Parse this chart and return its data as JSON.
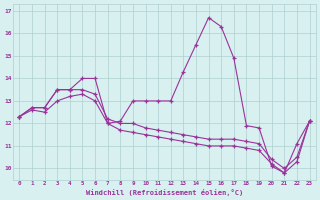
{
  "xlabel": "Windchill (Refroidissement éolien,°C)",
  "hours": [
    0,
    1,
    2,
    3,
    4,
    5,
    6,
    7,
    8,
    9,
    10,
    11,
    12,
    13,
    14,
    15,
    16,
    17,
    18,
    19,
    20,
    21,
    22,
    23
  ],
  "y_main": [
    12.3,
    12.7,
    12.7,
    13.5,
    13.5,
    14.0,
    14.0,
    12.0,
    12.1,
    13.0,
    13.0,
    13.0,
    13.0,
    14.3,
    15.5,
    16.7,
    16.3,
    14.9,
    11.9,
    11.8,
    10.1,
    9.8,
    11.1,
    12.1
  ],
  "y_mid": [
    12.3,
    12.7,
    12.7,
    13.5,
    13.5,
    13.5,
    13.3,
    12.2,
    12.0,
    12.0,
    11.8,
    11.7,
    11.6,
    11.5,
    11.4,
    11.3,
    11.3,
    11.3,
    11.2,
    11.1,
    10.4,
    10.0,
    10.5,
    12.1
  ],
  "y_low": [
    12.3,
    12.6,
    12.5,
    13.0,
    13.2,
    13.3,
    13.0,
    12.0,
    11.7,
    11.6,
    11.5,
    11.4,
    11.3,
    11.2,
    11.1,
    11.0,
    11.0,
    11.0,
    10.9,
    10.8,
    10.2,
    9.8,
    10.3,
    12.1
  ],
  "line_color": "#993399",
  "bg_color": "#d8f0f0",
  "grid_color": "#b0d0d0",
  "ylim": [
    9.5,
    17.3
  ],
  "yticks": [
    10,
    11,
    12,
    13,
    14,
    15,
    16,
    17
  ],
  "text_color": "#993399"
}
